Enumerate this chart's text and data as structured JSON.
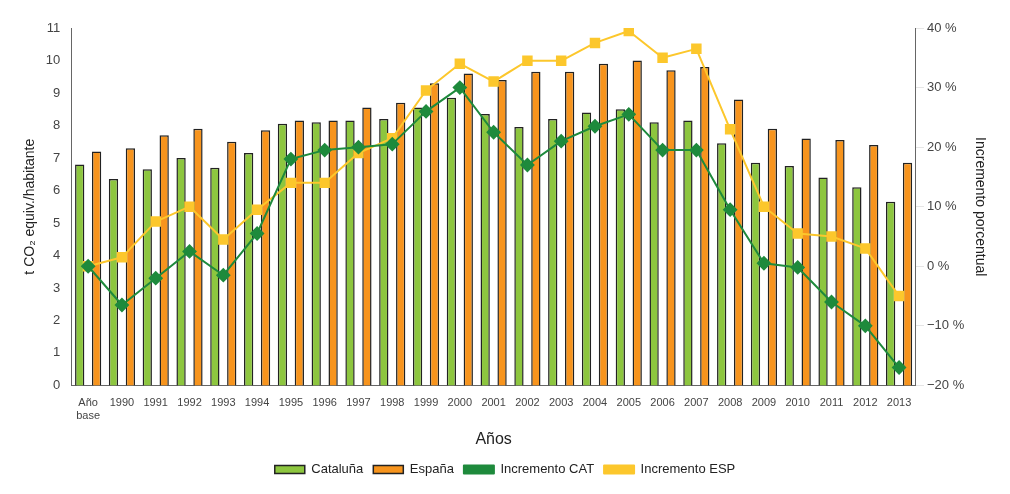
{
  "chart_data": {
    "type": "bar",
    "xlabel": "Años",
    "ylabel": "t CO₂ equiv./habitante",
    "y2label": "Incremento porcentual",
    "categories": [
      "Año base",
      "1990",
      "1991",
      "1992",
      "1993",
      "1994",
      "1995",
      "1996",
      "1997",
      "1998",
      "1999",
      "2000",
      "2001",
      "2002",
      "2003",
      "2004",
      "2005",
      "2006",
      "2007",
      "2008",
      "2009",
      "2010",
      "2011",
      "2012",
      "2013"
    ],
    "series": [
      {
        "name": "Cataluña",
        "color": "#8dc63f",
        "values": [
          6.8,
          6.35,
          6.65,
          7.0,
          6.7,
          7.15,
          8.05,
          8.1,
          8.15,
          8.2,
          8.55,
          8.85,
          8.35,
          7.95,
          8.2,
          8.4,
          8.5,
          8.1,
          8.15,
          7.45,
          6.85,
          6.75,
          6.4,
          6.1,
          5.65
        ]
      },
      {
        "name": "España",
        "color": "#f7941d",
        "values": [
          7.2,
          7.3,
          7.7,
          7.9,
          7.5,
          7.85,
          8.15,
          8.15,
          8.55,
          8.7,
          9.3,
          9.6,
          9.4,
          9.65,
          9.65,
          9.9,
          10.0,
          9.7,
          9.8,
          8.8,
          7.9,
          7.6,
          7.55,
          7.4,
          6.85
        ]
      },
      {
        "name": "Incremento CAT",
        "type": "line",
        "axis": "y2",
        "marker": "diamond",
        "color": "#1e8a3c",
        "values": [
          0,
          -6.5,
          -2,
          2.5,
          -1.5,
          5.5,
          18,
          19.5,
          20,
          20.5,
          26,
          30,
          22.5,
          17,
          21,
          23.5,
          25.5,
          19.5,
          19.5,
          9.5,
          0.5,
          -0.2,
          -6,
          -10,
          -17
        ]
      },
      {
        "name": "Incremento ESP",
        "type": "line",
        "axis": "y2",
        "marker": "square",
        "color": "#fcc72c",
        "values": [
          0,
          1.5,
          7.5,
          10,
          4.5,
          9.5,
          14,
          14,
          19,
          21.5,
          29.5,
          34,
          31,
          34.5,
          34.5,
          37.5,
          39.5,
          35,
          36.5,
          23,
          10,
          5.5,
          5,
          3,
          -5
        ]
      }
    ],
    "ylim": [
      0,
      11
    ],
    "yticks": [
      0,
      1,
      2,
      3,
      4,
      5,
      6,
      7,
      8,
      9,
      10,
      11
    ],
    "y2lim": [
      -20,
      40
    ],
    "y2ticks": [
      {
        "value": -20,
        "label": "−20 %"
      },
      {
        "value": -10,
        "label": "−10 %"
      },
      {
        "value": 0,
        "label": "0 %"
      },
      {
        "value": 10,
        "label": "10 %"
      },
      {
        "value": 20,
        "label": "20 %"
      },
      {
        "value": 30,
        "label": "30 %"
      },
      {
        "value": 40,
        "label": "40 %"
      }
    ],
    "grid": false,
    "legend": "bottom"
  }
}
